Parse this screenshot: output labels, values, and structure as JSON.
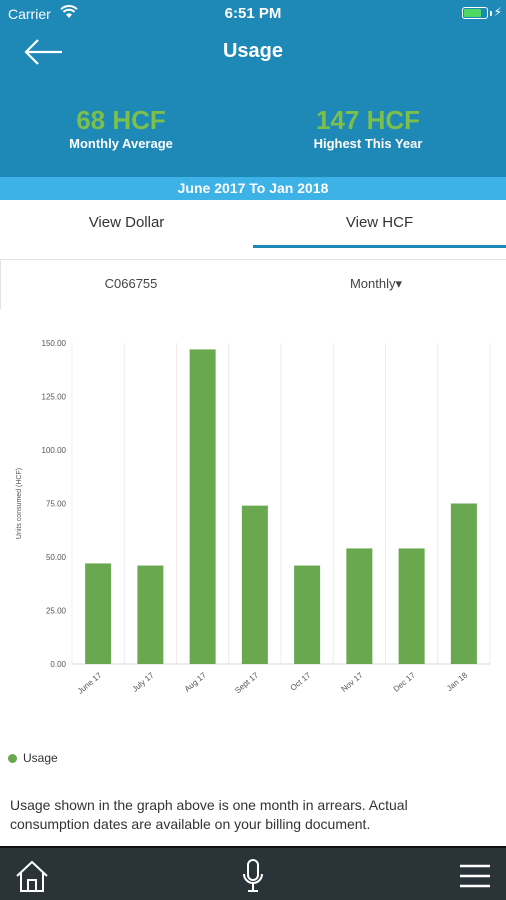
{
  "status_bar": {
    "carrier": "Carrier",
    "time": "6:51 PM",
    "battery_level": 0.85,
    "icons": [
      "wifi-icon",
      "battery-icon",
      "charging-icon"
    ]
  },
  "header": {
    "title": "Usage",
    "back_icon": "arrow-left-icon"
  },
  "stats": {
    "average": {
      "value": "68 HCF",
      "label": "Monthly Average"
    },
    "highest": {
      "value": "147 HCF",
      "label": "Highest This Year"
    }
  },
  "date_range": "June 2017 To Jan 2018",
  "tabs": [
    {
      "label": "View Dollar",
      "active": false
    },
    {
      "label": "View HCF",
      "active": true
    }
  ],
  "filters": {
    "account": "C066755",
    "period": "Monthly▾"
  },
  "chart_data": {
    "type": "bar",
    "categories": [
      "June 17",
      "July 17",
      "Aug 17",
      "Sept 17",
      "Oct 17",
      "Nov 17",
      "Dec 17",
      "Jan 18"
    ],
    "series": [
      {
        "name": "Usage",
        "values": [
          47,
          46,
          147,
          74,
          46,
          54,
          54,
          75
        ],
        "color": "#6aa84f"
      }
    ],
    "ylabel": "Units consumed (HCF)",
    "yticks": [
      "0.00",
      "25.00",
      "50.00",
      "75.00",
      "100.00",
      "125.00",
      "150.00"
    ],
    "ylim": [
      0,
      150
    ],
    "grid": "vertical",
    "legend_placement": "bottom-left"
  },
  "legend": {
    "label": "Usage"
  },
  "note": "Usage shown in the graph above is one month in arrears. Actual consumption dates are available on your billing document.",
  "bottom_nav": {
    "icons": [
      "home-icon",
      "microphone-icon",
      "hamburger-menu-icon"
    ]
  },
  "colors": {
    "header_blue": "#1e88b6",
    "date_bar_blue": "#3cb2e6",
    "stat_green": "#7cc04b",
    "bar_green": "#6aa84f",
    "nav_dark": "#2a3338"
  }
}
